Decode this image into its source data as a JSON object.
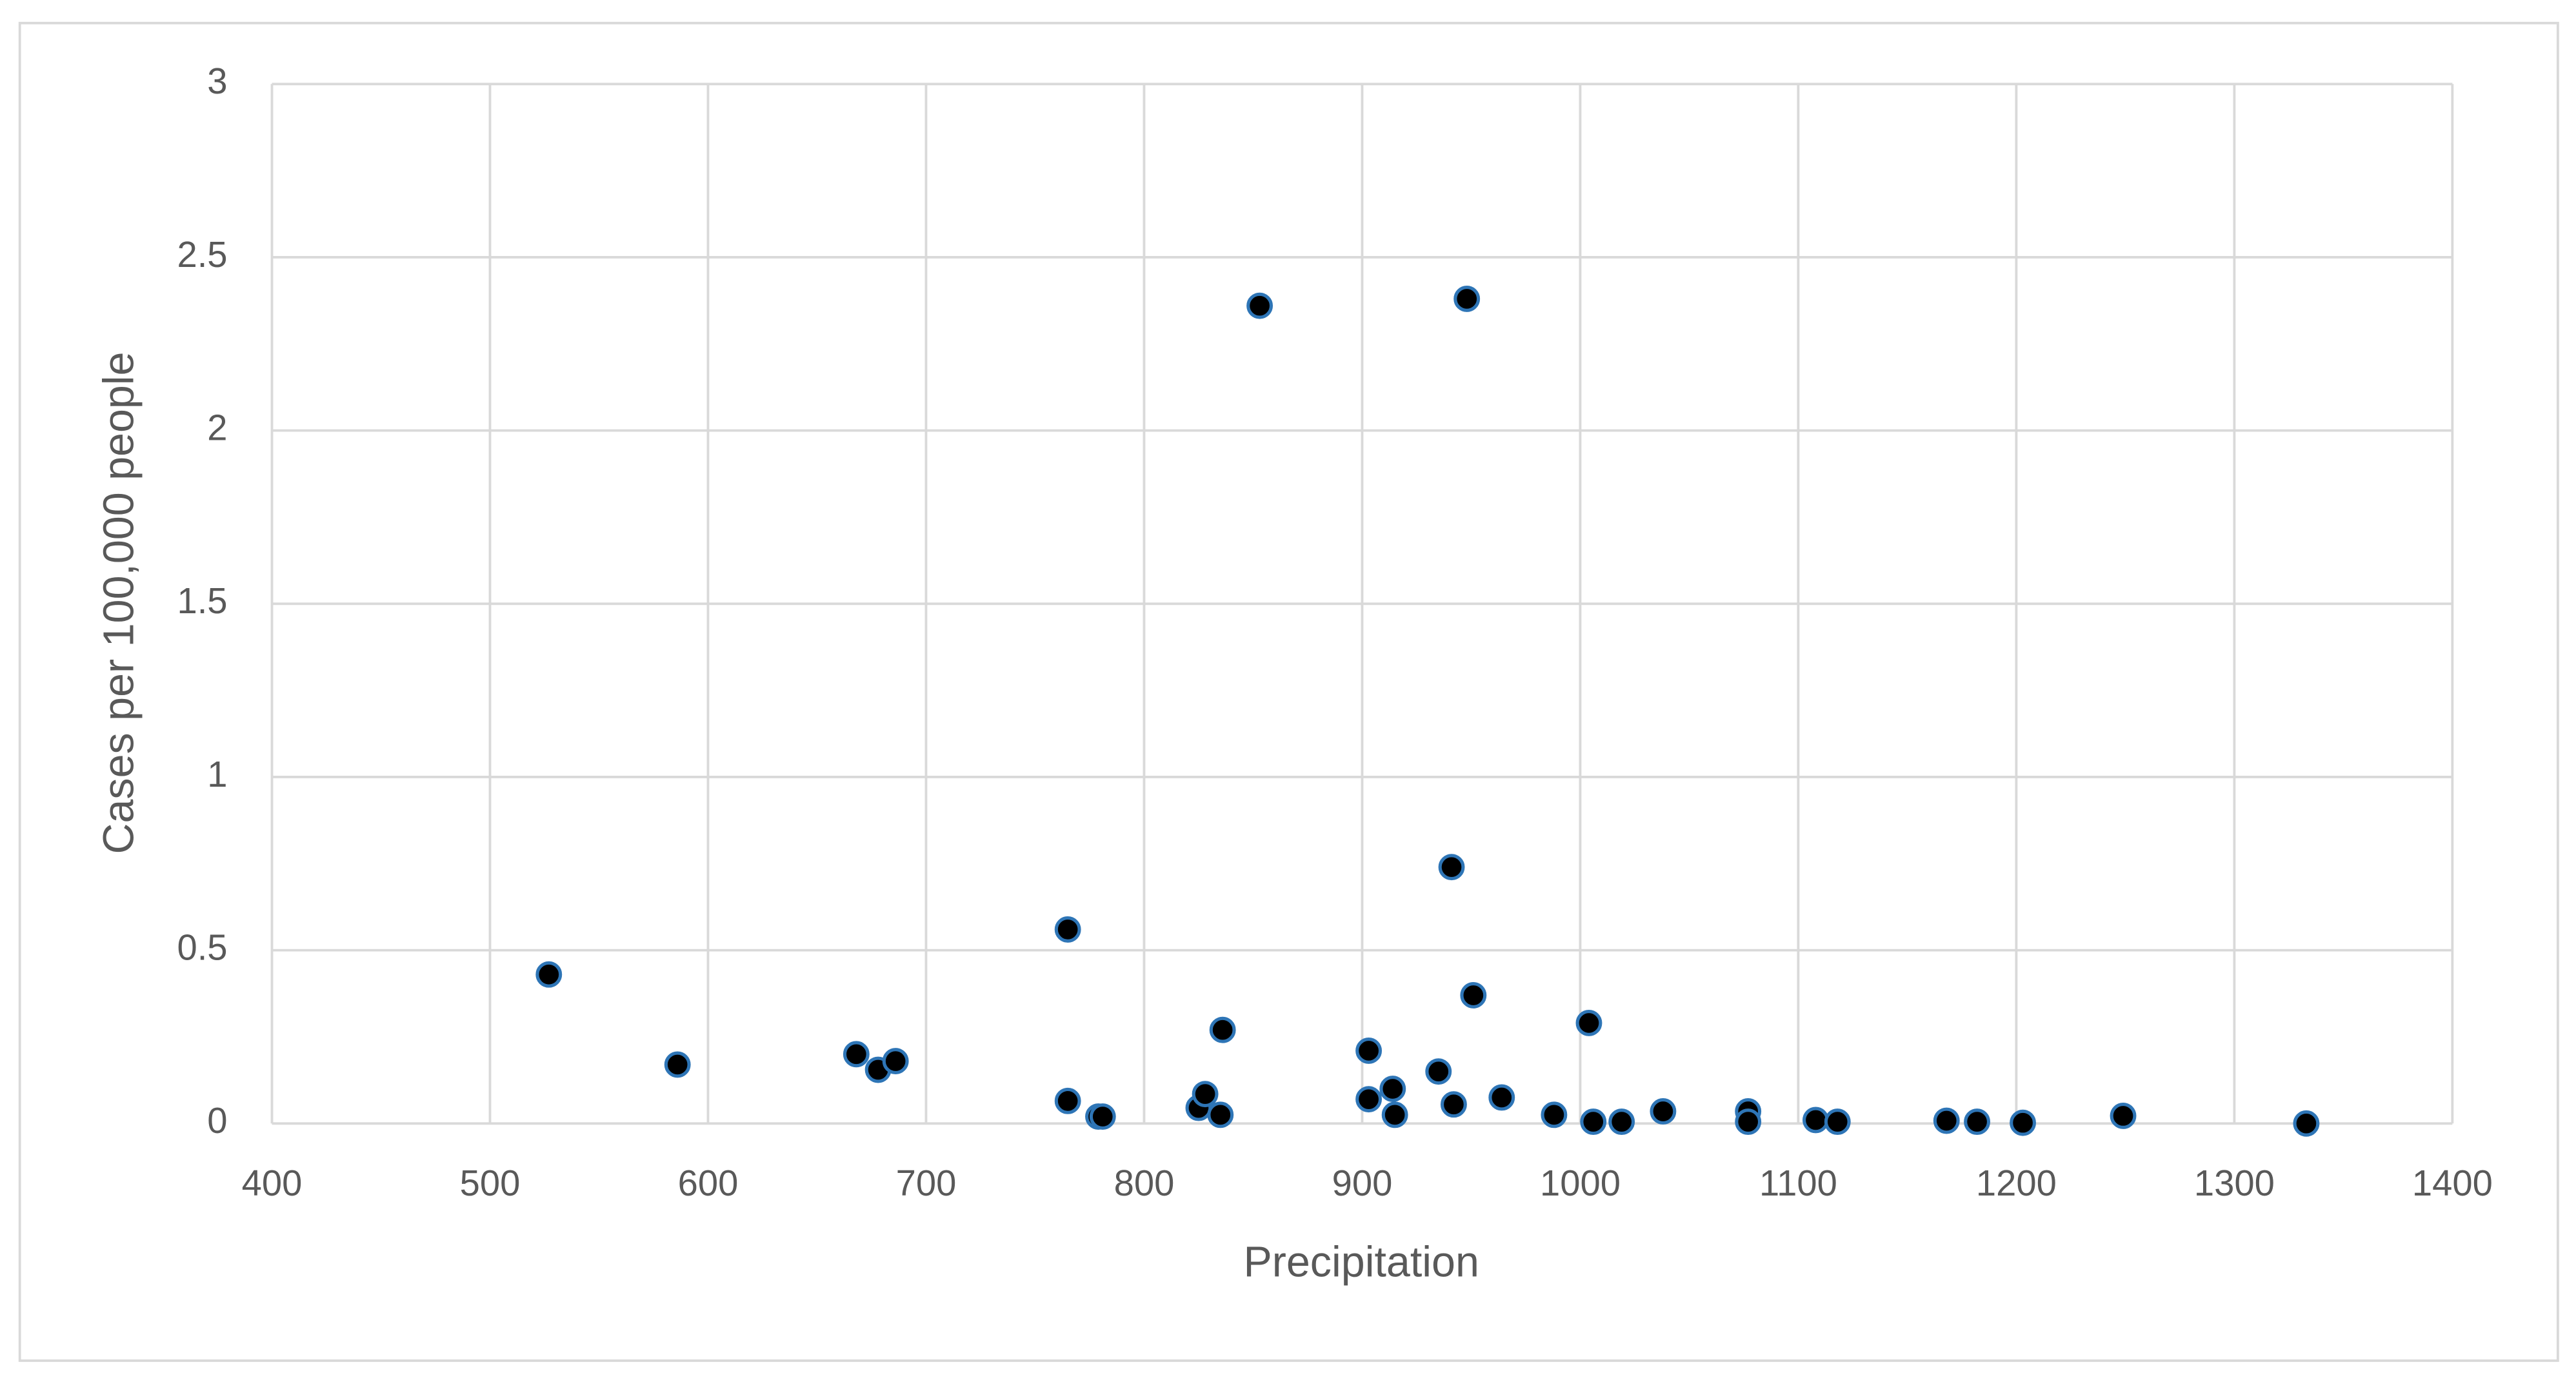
{
  "chart_data": {
    "type": "scatter",
    "x_label": "Precipitation",
    "y_label": "Cases per 100,000 people",
    "series": [
      {
        "color": "#000000",
        "edge_color": "#2e75b6",
        "x": [
          527,
          586,
          668,
          678,
          686,
          765,
          765,
          779,
          781,
          825,
          828,
          835,
          836,
          853,
          903,
          903,
          914,
          915,
          935,
          941,
          942,
          948,
          951,
          964,
          988,
          1004,
          1006,
          1019,
          1038,
          1077,
          1077,
          1108,
          1118,
          1168,
          1182,
          1203,
          1249,
          1333
        ],
        "values": [
          0.43,
          0.17,
          0.2,
          0.155,
          0.18,
          0.56,
          0.065,
          0.02,
          0.02,
          0.045,
          0.085,
          0.025,
          0.27,
          2.36,
          0.21,
          0.07,
          0.1,
          0.025,
          0.15,
          0.74,
          0.055,
          2.38,
          0.37,
          0.075,
          0.025,
          0.29,
          0.005,
          0.005,
          0.035,
          0.035,
          0.005,
          0.01,
          0.005,
          0.008,
          0.005,
          0.002,
          0.022,
          0
        ]
      }
    ],
    "xlim": [
      400,
      1400
    ],
    "xticks": [
      400,
      500,
      600,
      700,
      800,
      900,
      1000,
      1100,
      1200,
      1300,
      1400
    ],
    "ylim": [
      0,
      3
    ],
    "yticks": [
      0,
      0.5,
      1,
      1.5,
      2,
      2.5,
      3
    ],
    "grid": true
  }
}
